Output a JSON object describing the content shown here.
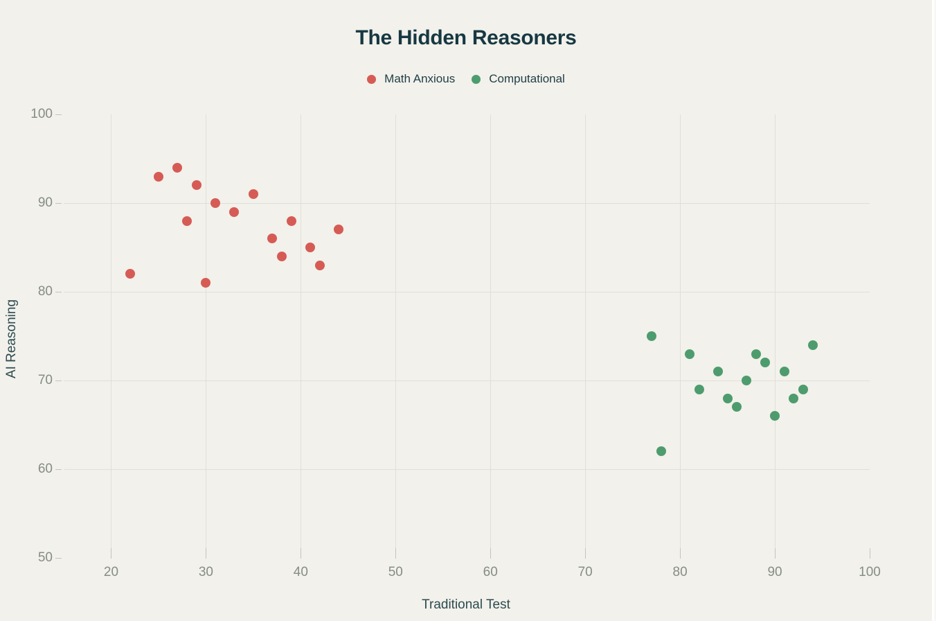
{
  "title": "The Hidden Reasoners",
  "colors": {
    "background": "#f2f1eb",
    "gutter": "#ffffff",
    "title": "#173842",
    "legend_text": "#1e3d45",
    "tick_label": "#868c86",
    "axis_title": "#2d4b50",
    "gridline": "#e0dfd7",
    "tick_mark": "#c4c3bb",
    "math_anxious": "#d65b55",
    "computational": "#4e9c6d"
  },
  "chart_data": {
    "type": "scatter",
    "title": "The Hidden Reasoners",
    "xlabel": "Traditional Test",
    "ylabel": "AI Reasoning",
    "xlim": [
      15,
      100
    ],
    "ylim": [
      50,
      100
    ],
    "xticks": [
      20,
      30,
      40,
      50,
      60,
      70,
      80,
      90,
      100
    ],
    "yticks": [
      50,
      60,
      70,
      80,
      90,
      100
    ],
    "grid": true,
    "legend_position": "top",
    "marker": "circle",
    "series": [
      {
        "name": "Math Anxious",
        "color": "#d65b55",
        "points": [
          [
            22,
            82
          ],
          [
            25,
            93
          ],
          [
            27,
            94
          ],
          [
            28,
            88
          ],
          [
            29,
            92
          ],
          [
            30,
            81
          ],
          [
            31,
            90
          ],
          [
            33,
            89
          ],
          [
            35,
            91
          ],
          [
            37,
            86
          ],
          [
            38,
            84
          ],
          [
            39,
            88
          ],
          [
            41,
            85
          ],
          [
            42,
            83
          ],
          [
            44,
            87
          ]
        ]
      },
      {
        "name": "Computational",
        "color": "#4e9c6d",
        "points": [
          [
            77,
            75
          ],
          [
            78,
            62
          ],
          [
            81,
            73
          ],
          [
            82,
            69
          ],
          [
            84,
            71
          ],
          [
            85,
            68
          ],
          [
            86,
            67
          ],
          [
            87,
            70
          ],
          [
            88,
            73
          ],
          [
            89,
            72
          ],
          [
            90,
            66
          ],
          [
            91,
            71
          ],
          [
            92,
            68
          ],
          [
            93,
            69
          ],
          [
            94,
            74
          ]
        ]
      }
    ]
  }
}
